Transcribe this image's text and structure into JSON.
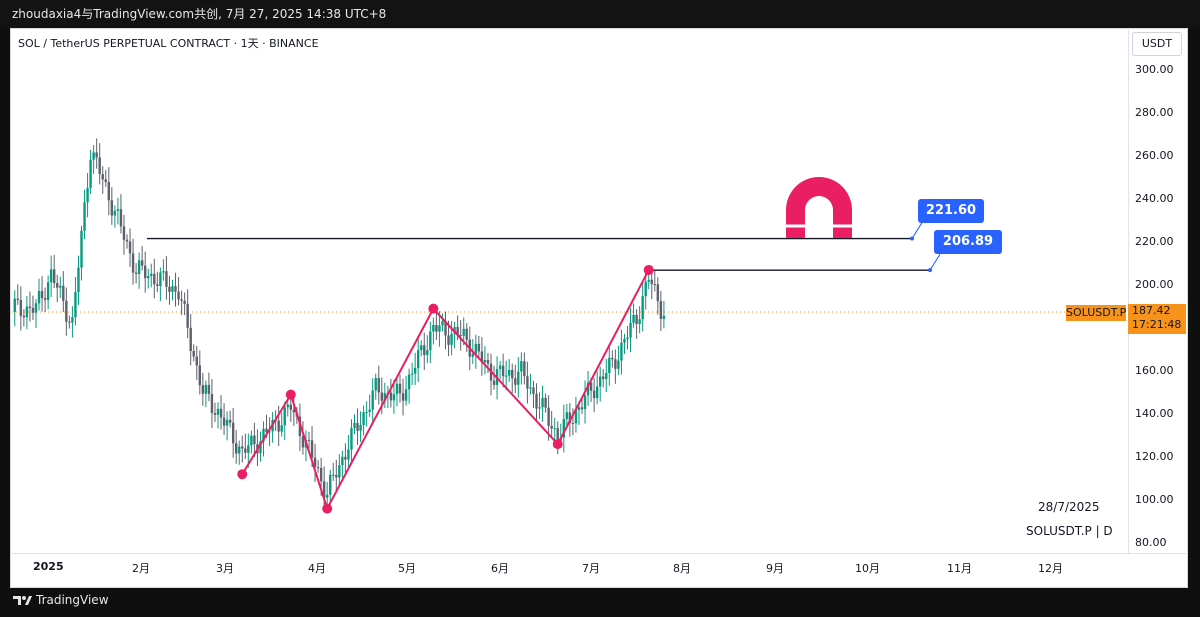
{
  "header": {
    "attribution": "zhoudaxia4与TradingView.com共创, 7月 27, 2025 14:38 UTC+8"
  },
  "chart_title": "SOL / TetherUS PERPETUAL CONTRACT · 1天 · BINANCE",
  "currency": "USDT",
  "current": {
    "symbol_label": "SOLUSDT.P",
    "price": "187.42",
    "countdown": "17:21:48"
  },
  "footer": {
    "date": "28/7/2025",
    "symbol": "SOLUSDT.P | D"
  },
  "brand": "TradingView",
  "colors": {
    "up": "#089981",
    "down": "#5d606b",
    "accent": "#f7931a",
    "pattern": "#e91e63",
    "tag": "#2962ff"
  },
  "icons": [
    "tradingview-logo-icon",
    "magnet-icon"
  ],
  "chart_data": {
    "type": "candlestick",
    "ylim": [
      80,
      300
    ],
    "yticks": [
      "300.00",
      "280.00",
      "260.00",
      "240.00",
      "220.00",
      "200.00",
      "160.00",
      "140.00",
      "120.00",
      "100.00",
      "80.00"
    ],
    "xticks": [
      "2025",
      "2月",
      "3月",
      "4月",
      "5月",
      "6月",
      "7月",
      "8月",
      "9月",
      "10月",
      "11月",
      "12月"
    ],
    "levels": [
      {
        "value": 221.6,
        "label": "221.60"
      },
      {
        "value": 206.89,
        "label": "206.89"
      }
    ],
    "current_price": 187.42,
    "pattern_points": [
      {
        "date": "2025-03-10",
        "price": 112
      },
      {
        "date": "2025-03-26",
        "price": 149
      },
      {
        "date": "2025-04-07",
        "price": 96
      },
      {
        "date": "2025-05-12",
        "price": 189
      },
      {
        "date": "2025-06-22",
        "price": 126
      },
      {
        "date": "2025-07-22",
        "price": 207
      }
    ],
    "price_path": [
      {
        "date": "2025-01-01",
        "price": 189
      },
      {
        "date": "2025-01-06",
        "price": 205
      },
      {
        "date": "2025-01-13",
        "price": 182
      },
      {
        "date": "2025-01-19",
        "price": 263
      },
      {
        "date": "2025-01-26",
        "price": 238
      },
      {
        "date": "2025-02-03",
        "price": 207
      },
      {
        "date": "2025-02-10",
        "price": 203
      },
      {
        "date": "2025-02-17",
        "price": 197
      },
      {
        "date": "2025-02-25",
        "price": 150
      },
      {
        "date": "2025-03-02",
        "price": 141
      },
      {
        "date": "2025-03-10",
        "price": 122
      },
      {
        "date": "2025-03-18",
        "price": 131
      },
      {
        "date": "2025-03-26",
        "price": 143
      },
      {
        "date": "2025-04-07",
        "price": 103
      },
      {
        "date": "2025-04-14",
        "price": 126
      },
      {
        "date": "2025-04-23",
        "price": 151
      },
      {
        "date": "2025-05-01",
        "price": 148
      },
      {
        "date": "2025-05-12",
        "price": 180
      },
      {
        "date": "2025-05-22",
        "price": 176
      },
      {
        "date": "2025-06-01",
        "price": 158
      },
      {
        "date": "2025-06-10",
        "price": 159
      },
      {
        "date": "2025-06-22",
        "price": 130
      },
      {
        "date": "2025-07-01",
        "price": 147
      },
      {
        "date": "2025-07-10",
        "price": 163
      },
      {
        "date": "2025-07-18",
        "price": 185
      },
      {
        "date": "2025-07-22",
        "price": 203
      },
      {
        "date": "2025-07-27",
        "price": 187
      }
    ]
  }
}
